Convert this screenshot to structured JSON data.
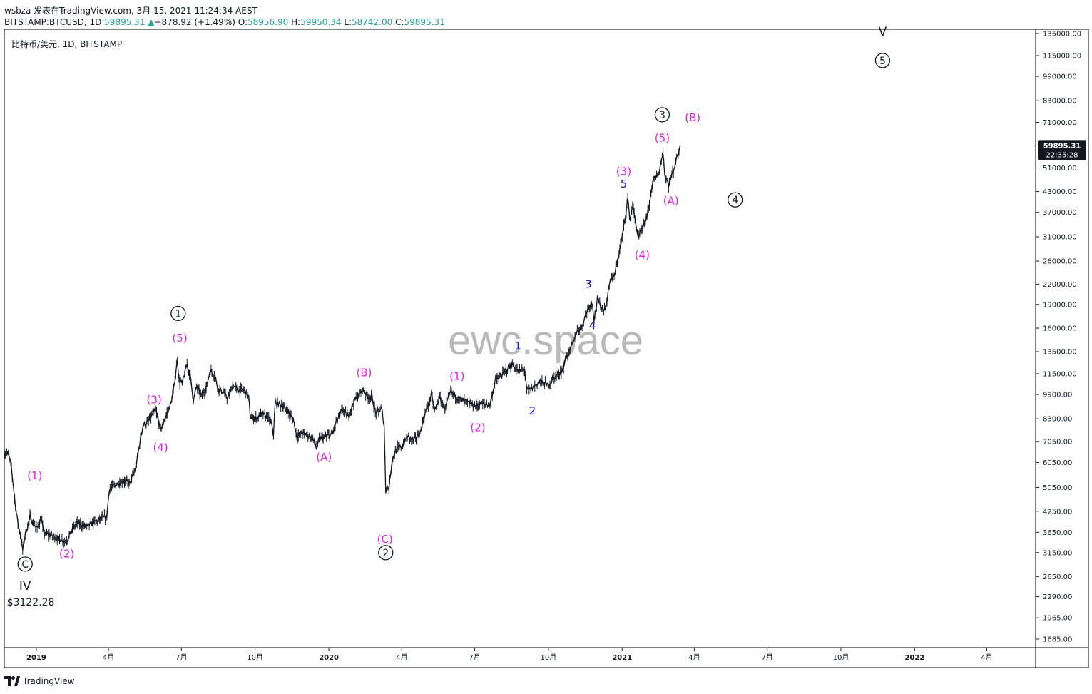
{
  "header": {
    "line1": "wsbza 发表在TradingView.com, 3月 15, 2021 11:24:34 AEST",
    "symbol": "BITSTAMP:BTCUSD, 1D",
    "price": "59895.31",
    "change": "+878.92 (+1.49%)",
    "o_label": "O:",
    "o_val": "58956.90",
    "h_label": "H:",
    "h_val": "59950.34",
    "l_label": "L:",
    "l_val": "58742.00",
    "c_label": "C:",
    "c_val": "59895.31"
  },
  "legend": "比特币/美元, 1D, BITSTAMP",
  "watermark": "ewc.space",
  "price_tag": {
    "price": "59895.31",
    "countdown": "22:35:28"
  },
  "footer": {
    "brand": "TradingView"
  },
  "colors": {
    "candle": "#131722",
    "magenta": "#e91ee9",
    "blue": "#1515c8",
    "black": "#131722",
    "tag": "#131722"
  },
  "chart_data": {
    "type": "candlestick",
    "title": "比特币/美元, 1D, BITSTAMP",
    "y_scale": "log",
    "ylim": [
      1500,
      150000
    ],
    "xlim": [
      "2018-11-22",
      "2022-06-01"
    ],
    "y_ticks": [
      "135000.00",
      "115000.00",
      "99000.00",
      "83000.00",
      "71000.00",
      "51000.00",
      "43000.00",
      "37000.00",
      "31000.00",
      "26000.00",
      "22000.00",
      "19000.00",
      "16000.00",
      "13500.00",
      "11500.00",
      "9900.00",
      "8300.00",
      "7050.00",
      "6050.00",
      "5050.00",
      "4250.00",
      "3650.00",
      "3150.00",
      "2650.00",
      "2290.00",
      "1965.00",
      "1685.00"
    ],
    "x_ticks": [
      {
        "date": "2019-01-01",
        "label": "2019"
      },
      {
        "date": "2019-04-01",
        "label": "4月"
      },
      {
        "date": "2019-07-01",
        "label": "7月"
      },
      {
        "date": "2019-10-01",
        "label": "10月"
      },
      {
        "date": "2020-01-01",
        "label": "2020"
      },
      {
        "date": "2020-04-01",
        "label": "4月"
      },
      {
        "date": "2020-07-01",
        "label": "7月"
      },
      {
        "date": "2020-10-01",
        "label": "10月"
      },
      {
        "date": "2021-01-01",
        "label": "2021"
      },
      {
        "date": "2021-04-01",
        "label": "4月"
      },
      {
        "date": "2021-07-01",
        "label": "7月"
      },
      {
        "date": "2021-10-01",
        "label": "10月"
      },
      {
        "date": "2022-01-01",
        "label": "2022"
      },
      {
        "date": "2022-04-01",
        "label": "4月"
      }
    ],
    "price_path": [
      [
        "2018-11-22",
        6400
      ],
      [
        "2018-11-25",
        6500
      ],
      [
        "2018-11-28",
        6300
      ],
      [
        "2018-12-01",
        5800
      ],
      [
        "2018-12-04",
        4900
      ],
      [
        "2018-12-07",
        4200
      ],
      [
        "2018-12-10",
        3800
      ],
      [
        "2018-12-13",
        3500
      ],
      [
        "2018-12-15",
        3200
      ],
      [
        "2018-12-18",
        3600
      ],
      [
        "2018-12-21",
        3800
      ],
      [
        "2018-12-24",
        4100
      ],
      [
        "2018-12-28",
        3900
      ],
      [
        "2019-01-02",
        3750
      ],
      [
        "2019-01-07",
        4050
      ],
      [
        "2019-01-10",
        3650
      ],
      [
        "2019-01-15",
        3600
      ],
      [
        "2019-01-22",
        3550
      ],
      [
        "2019-01-28",
        3500
      ],
      [
        "2019-02-07",
        3400
      ],
      [
        "2019-02-12",
        3600
      ],
      [
        "2019-02-20",
        3900
      ],
      [
        "2019-02-26",
        3850
      ],
      [
        "2019-03-05",
        3800
      ],
      [
        "2019-03-12",
        3900
      ],
      [
        "2019-03-20",
        4000
      ],
      [
        "2019-03-30",
        4100
      ],
      [
        "2019-04-02",
        5000
      ],
      [
        "2019-04-10",
        5150
      ],
      [
        "2019-04-20",
        5300
      ],
      [
        "2019-04-28",
        5200
      ],
      [
        "2019-05-05",
        5800
      ],
      [
        "2019-05-11",
        7200
      ],
      [
        "2019-05-14",
        7900
      ],
      [
        "2019-05-20",
        8100
      ],
      [
        "2019-05-25",
        8500
      ],
      [
        "2019-05-30",
        8800
      ],
      [
        "2019-06-05",
        7700
      ],
      [
        "2019-06-12",
        8500
      ],
      [
        "2019-06-18",
        9300
      ],
      [
        "2019-06-22",
        10500
      ],
      [
        "2019-06-26",
        12800
      ],
      [
        "2019-06-28",
        11000
      ],
      [
        "2019-07-02",
        10700
      ],
      [
        "2019-07-08",
        12300
      ],
      [
        "2019-07-12",
        11300
      ],
      [
        "2019-07-16",
        9500
      ],
      [
        "2019-07-20",
        10500
      ],
      [
        "2019-07-26",
        9800
      ],
      [
        "2019-08-01",
        10400
      ],
      [
        "2019-08-06",
        11800
      ],
      [
        "2019-08-12",
        11300
      ],
      [
        "2019-08-16",
        10300
      ],
      [
        "2019-08-22",
        10100
      ],
      [
        "2019-08-28",
        9600
      ],
      [
        "2019-09-03",
        10600
      ],
      [
        "2019-09-10",
        10200
      ],
      [
        "2019-09-18",
        10200
      ],
      [
        "2019-09-23",
        9700
      ],
      [
        "2019-09-25",
        8400
      ],
      [
        "2019-10-01",
        8300
      ],
      [
        "2019-10-10",
        8600
      ],
      [
        "2019-10-20",
        8200
      ],
      [
        "2019-10-24",
        7500
      ],
      [
        "2019-10-26",
        9300
      ],
      [
        "2019-11-02",
        9200
      ],
      [
        "2019-11-10",
        8800
      ],
      [
        "2019-11-18",
        8200
      ],
      [
        "2019-11-22",
        7300
      ],
      [
        "2019-11-28",
        7500
      ],
      [
        "2019-12-05",
        7400
      ],
      [
        "2019-12-12",
        7200
      ],
      [
        "2019-12-17",
        6700
      ],
      [
        "2019-12-20",
        7200
      ],
      [
        "2019-12-28",
        7300
      ],
      [
        "2020-01-05",
        7400
      ],
      [
        "2020-01-10",
        8100
      ],
      [
        "2020-01-18",
        8900
      ],
      [
        "2020-01-25",
        8400
      ],
      [
        "2020-02-01",
        9400
      ],
      [
        "2020-02-08",
        9900
      ],
      [
        "2020-02-13",
        10300
      ],
      [
        "2020-02-19",
        9700
      ],
      [
        "2020-02-24",
        9700
      ],
      [
        "2020-02-28",
        8700
      ],
      [
        "2020-03-07",
        8900
      ],
      [
        "2020-03-10",
        7900
      ],
      [
        "2020-03-12",
        4900
      ],
      [
        "2020-03-13",
        5100
      ],
      [
        "2020-03-16",
        5000
      ],
      [
        "2020-03-20",
        6200
      ],
      [
        "2020-03-26",
        6700
      ],
      [
        "2020-04-02",
        6800
      ],
      [
        "2020-04-08",
        7300
      ],
      [
        "2020-04-16",
        7100
      ],
      [
        "2020-04-24",
        7500
      ],
      [
        "2020-04-30",
        8600
      ],
      [
        "2020-05-08",
        9900
      ],
      [
        "2020-05-12",
        8800
      ],
      [
        "2020-05-18",
        9700
      ],
      [
        "2020-05-25",
        8900
      ],
      [
        "2020-06-01",
        10100
      ],
      [
        "2020-06-08",
        9700
      ],
      [
        "2020-06-16",
        9500
      ],
      [
        "2020-06-24",
        9300
      ],
      [
        "2020-07-01",
        9100
      ],
      [
        "2020-07-10",
        9250
      ],
      [
        "2020-07-20",
        9200
      ],
      [
        "2020-07-27",
        11000
      ],
      [
        "2020-08-02",
        11200
      ],
      [
        "2020-08-10",
        11900
      ],
      [
        "2020-08-17",
        12300
      ],
      [
        "2020-08-24",
        11700
      ],
      [
        "2020-09-01",
        11900
      ],
      [
        "2020-09-04",
        10200
      ],
      [
        "2020-09-10",
        10300
      ],
      [
        "2020-09-20",
        10900
      ],
      [
        "2020-09-25",
        10700
      ],
      [
        "2020-10-01",
        10600
      ],
      [
        "2020-10-10",
        11300
      ],
      [
        "2020-10-20",
        11900
      ],
      [
        "2020-10-22",
        12900
      ],
      [
        "2020-10-28",
        13600
      ],
      [
        "2020-11-05",
        15500
      ],
      [
        "2020-11-12",
        16300
      ],
      [
        "2020-11-20",
        18700
      ],
      [
        "2020-11-25",
        19200
      ],
      [
        "2020-11-27",
        17000
      ],
      [
        "2020-12-01",
        19600
      ],
      [
        "2020-12-08",
        18300
      ],
      [
        "2020-12-12",
        18800
      ],
      [
        "2020-12-17",
        22800
      ],
      [
        "2020-12-22",
        23200
      ],
      [
        "2020-12-27",
        26500
      ],
      [
        "2021-01-02",
        32100
      ],
      [
        "2021-01-08",
        40700
      ],
      [
        "2021-01-11",
        35000
      ],
      [
        "2021-01-14",
        39000
      ],
      [
        "2021-01-21",
        30900
      ],
      [
        "2021-01-25",
        32300
      ],
      [
        "2021-01-28",
        33400
      ],
      [
        "2021-02-03",
        37700
      ],
      [
        "2021-02-08",
        46200
      ],
      [
        "2021-02-12",
        47500
      ],
      [
        "2021-02-16",
        49200
      ],
      [
        "2021-02-21",
        57500
      ],
      [
        "2021-02-23",
        48900
      ],
      [
        "2021-02-28",
        45200
      ],
      [
        "2021-03-04",
        48400
      ],
      [
        "2021-03-08",
        52300
      ],
      [
        "2021-03-12",
        57200
      ],
      [
        "2021-03-15",
        59895
      ]
    ],
    "wave_labels": [
      {
        "text": "C",
        "style": "circled",
        "color": "black",
        "date": "2018-12-18",
        "y": 2900
      },
      {
        "text": "IV",
        "style": "plain",
        "color": "black",
        "date": "2018-12-18",
        "y": 2480,
        "size": 17
      },
      {
        "text": "$3122.28",
        "style": "plain",
        "color": "black",
        "date": "2018-12-25",
        "y": 2200,
        "size": 14
      },
      {
        "text": "(1)",
        "style": "plain",
        "color": "magenta",
        "date": "2018-12-30",
        "y": 5500
      },
      {
        "text": "(2)",
        "style": "plain",
        "color": "magenta",
        "date": "2019-02-08",
        "y": 3130
      },
      {
        "text": "(3)",
        "style": "plain",
        "color": "magenta",
        "date": "2019-05-28",
        "y": 9550
      },
      {
        "text": "(4)",
        "style": "plain",
        "color": "magenta",
        "date": "2019-06-05",
        "y": 6750
      },
      {
        "text": "(5)",
        "style": "plain",
        "color": "magenta",
        "date": "2019-06-29",
        "y": 14900
      },
      {
        "text": "1",
        "style": "circled",
        "color": "black",
        "date": "2019-06-27",
        "y": 17800
      },
      {
        "text": "(A)",
        "style": "plain",
        "color": "magenta",
        "date": "2019-12-26",
        "y": 6300
      },
      {
        "text": "(B)",
        "style": "plain",
        "color": "magenta",
        "date": "2020-02-14",
        "y": 11600
      },
      {
        "text": "(C)",
        "style": "plain",
        "color": "magenta",
        "date": "2020-03-11",
        "y": 3480
      },
      {
        "text": "2",
        "style": "circled",
        "color": "black",
        "date": "2020-03-12",
        "y": 3150
      },
      {
        "text": "(1)",
        "style": "plain",
        "color": "magenta",
        "date": "2020-06-09",
        "y": 11300
      },
      {
        "text": "(2)",
        "style": "plain",
        "color": "magenta",
        "date": "2020-07-05",
        "y": 7800
      },
      {
        "text": "1",
        "style": "plain",
        "color": "blue",
        "date": "2020-08-24",
        "y": 14100
      },
      {
        "text": "2",
        "style": "plain",
        "color": "blue",
        "date": "2020-09-11",
        "y": 8800
      },
      {
        "text": "3",
        "style": "plain",
        "color": "blue",
        "date": "2020-11-20",
        "y": 22000
      },
      {
        "text": "4",
        "style": "plain",
        "color": "blue",
        "date": "2020-11-25",
        "y": 16300
      },
      {
        "text": "5",
        "style": "plain",
        "color": "blue",
        "date": "2021-01-03",
        "y": 45500
      },
      {
        "text": "(3)",
        "style": "plain",
        "color": "magenta",
        "date": "2021-01-03",
        "y": 49800
      },
      {
        "text": "(4)",
        "style": "plain",
        "color": "magenta",
        "date": "2021-01-26",
        "y": 27200
      },
      {
        "text": "(5)",
        "style": "plain",
        "color": "magenta",
        "date": "2021-02-20",
        "y": 63500
      },
      {
        "text": "3",
        "style": "circled",
        "color": "black",
        "date": "2021-02-20",
        "y": 75000
      },
      {
        "text": "(A)",
        "style": "plain",
        "color": "magenta",
        "date": "2021-03-03",
        "y": 40300
      },
      {
        "text": "(B)",
        "style": "plain",
        "color": "magenta",
        "date": "2021-03-30",
        "y": 73500
      },
      {
        "text": "4",
        "style": "circled",
        "color": "black",
        "date": "2021-05-22",
        "y": 40500
      },
      {
        "text": "V",
        "style": "plain",
        "color": "black",
        "date": "2021-11-22",
        "y": 137000,
        "size": 17
      },
      {
        "text": "5",
        "style": "circled",
        "color": "black",
        "date": "2021-11-22",
        "y": 111000
      }
    ]
  }
}
